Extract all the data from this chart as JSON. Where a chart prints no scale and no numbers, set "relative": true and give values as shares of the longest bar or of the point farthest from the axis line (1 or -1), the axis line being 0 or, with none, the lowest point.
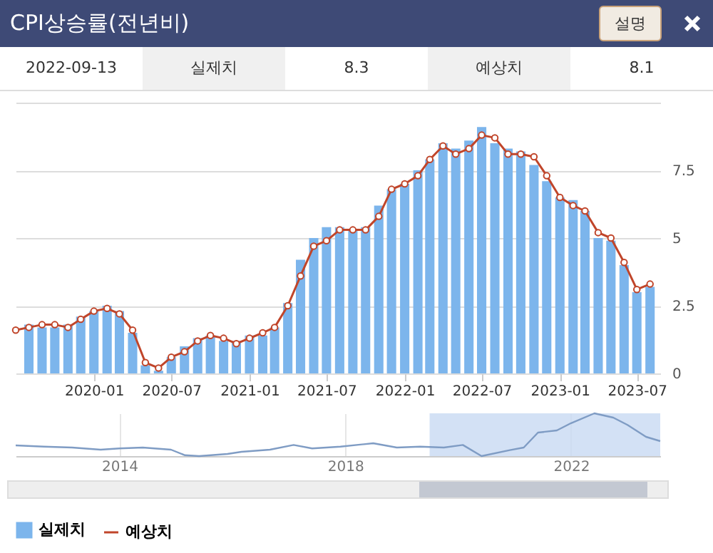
{
  "chart_data": [
    {
      "type": "bar",
      "title": "CPI상승률(전년비)",
      "annotations": [
        "2022-09-13",
        "실제치",
        "8.3",
        "예상치",
        "8.1",
        "설명"
      ],
      "x": [
        "2019-07",
        "2019-08",
        "2019-09",
        "2019-10",
        "2019-11",
        "2019-12",
        "2020-01",
        "2020-02",
        "2020-03",
        "2020-04",
        "2020-05",
        "2020-06",
        "2020-07",
        "2020-08",
        "2020-09",
        "2020-10",
        "2020-11",
        "2020-12",
        "2021-01",
        "2021-02",
        "2021-03",
        "2021-04",
        "2021-05",
        "2021-06",
        "2021-07",
        "2021-08",
        "2021-09",
        "2021-10",
        "2021-11",
        "2021-12",
        "2022-01",
        "2022-02",
        "2022-03",
        "2022-04",
        "2022-05",
        "2022-06",
        "2022-07",
        "2022-08",
        "2022-09",
        "2022-10",
        "2022-11",
        "2022-12",
        "2023-01",
        "2023-02",
        "2023-03",
        "2023-04",
        "2023-05",
        "2023-06",
        "2023-07",
        "2023-08"
      ],
      "series": [
        {
          "name": "실제치",
          "type": "bar",
          "color": "#7cb5ec",
          "values": [
            null,
            1.8,
            1.7,
            1.7,
            1.8,
            2.1,
            2.3,
            2.5,
            2.3,
            1.5,
            0.3,
            0.1,
            0.6,
            1.0,
            1.3,
            1.4,
            1.2,
            1.2,
            1.4,
            1.4,
            1.7,
            2.6,
            4.2,
            5.0,
            5.4,
            5.4,
            5.3,
            5.4,
            6.2,
            6.8,
            7.0,
            7.5,
            7.9,
            8.5,
            8.3,
            8.6,
            9.1,
            8.5,
            8.3,
            8.2,
            7.7,
            7.1,
            6.5,
            6.4,
            6.0,
            5.0,
            4.9,
            4.0,
            3.0,
            3.2
          ]
        },
        {
          "name": "예상치",
          "type": "line",
          "color": "#c0452a",
          "values": [
            1.6,
            1.7,
            1.8,
            1.8,
            1.7,
            2.0,
            2.3,
            2.4,
            2.2,
            1.6,
            0.4,
            0.2,
            0.6,
            0.8,
            1.2,
            1.4,
            1.3,
            1.1,
            1.3,
            1.5,
            1.7,
            2.5,
            3.6,
            4.7,
            4.9,
            5.3,
            5.3,
            5.3,
            5.8,
            6.8,
            7.0,
            7.3,
            7.9,
            8.4,
            8.1,
            8.3,
            8.8,
            8.7,
            8.1,
            8.1,
            8.0,
            7.3,
            6.5,
            6.2,
            6.0,
            5.2,
            5.0,
            4.1,
            3.1,
            3.3
          ]
        }
      ],
      "marker": "circle",
      "xlim": [
        "2019-07",
        "2023-08-25"
      ],
      "xticks": [
        "2020-01",
        "2020-07",
        "2021-01",
        "2021-07",
        "2022-01",
        "2022-07",
        "2023-01",
        "2023-07"
      ],
      "ylim": [
        0,
        10
      ],
      "yticks": [
        0,
        2.5,
        5,
        7.5,
        {
          "value": 10,
          "label": null
        }
      ],
      "grid": "y",
      "legend": "bottom"
    },
    {
      "type": "line",
      "relative": true,
      "x": [
        "2012-03",
        "2012-09",
        "2013-03",
        "2013-09",
        "2014-01",
        "2014-06",
        "2014-12",
        "2015-03",
        "2015-06",
        "2015-12",
        "2016-03",
        "2016-09",
        "2017-02",
        "2017-06",
        "2017-12",
        "2018-07",
        "2018-12",
        "2019-05",
        "2019-10",
        "2020-02",
        "2020-06",
        "2020-12",
        "2021-03",
        "2021-06",
        "2021-10",
        "2022-01",
        "2022-06",
        "2022-10",
        "2023-01",
        "2023-05",
        "2023-08"
      ],
      "series": [
        {
          "color": "#7f9cc4",
          "values": [
            0.25,
            0.22,
            0.2,
            0.15,
            0.18,
            0.2,
            0.15,
            0.02,
            0.0,
            0.05,
            0.1,
            0.15,
            0.26,
            0.18,
            0.22,
            0.3,
            0.2,
            0.22,
            0.2,
            0.26,
            0.0,
            0.14,
            0.2,
            0.55,
            0.6,
            0.77,
            1.0,
            0.9,
            0.73,
            0.45,
            0.35
          ]
        }
      ],
      "xlim": [
        "2012-03",
        "2023-08"
      ],
      "xticks": [
        "2014",
        "2018",
        "2022"
      ],
      "grid": "x",
      "bands": [
        {
          "axis": "x",
          "from": "2019-07",
          "to": "2023-08",
          "color": "#c8daf2"
        }
      ]
    }
  ]
}
